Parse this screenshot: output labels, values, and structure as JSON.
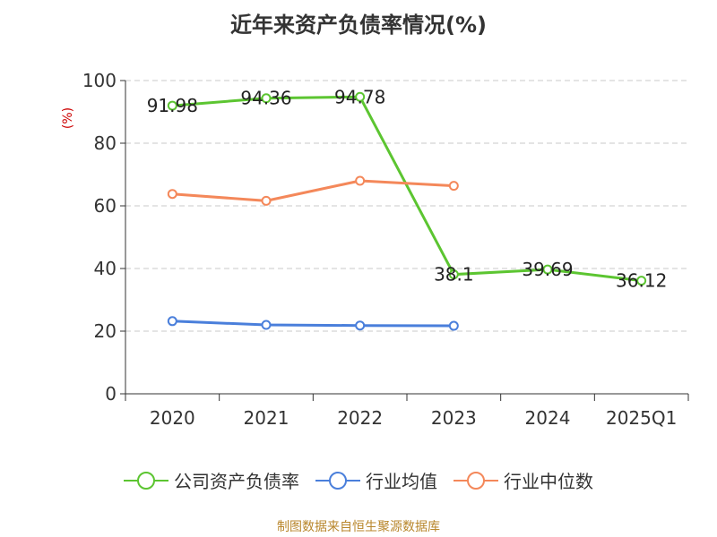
{
  "title": "近年来资产负债率情况(%)",
  "footer": "制图数据来自恒生聚源数据库",
  "chart_data": {
    "type": "line",
    "title": "近年来资产负债率情况(%)",
    "ylabel": "(%)",
    "xlabel": "",
    "categories": [
      "2020",
      "2021",
      "2022",
      "2023",
      "2024",
      "2025Q1"
    ],
    "ylim": [
      0,
      100
    ],
    "yticks": [
      0,
      20,
      40,
      60,
      80,
      100
    ],
    "grid": true,
    "legend_position": "bottom",
    "series": [
      {
        "name": "公司资产负债率",
        "color": "#5cc531",
        "values": [
          91.98,
          94.36,
          94.78,
          38.1,
          39.69,
          36.12
        ],
        "labels": [
          "91.98",
          "94.36",
          "94.78",
          "38.1",
          "39.69",
          "36.12"
        ]
      },
      {
        "name": "行业均值",
        "color": "#4a7fdb",
        "values": [
          23.2,
          22.0,
          21.8,
          21.7,
          null,
          null
        ]
      },
      {
        "name": "行业中位数",
        "color": "#f4885a",
        "values": [
          63.8,
          61.6,
          68.0,
          66.4,
          null,
          null
        ]
      }
    ]
  }
}
